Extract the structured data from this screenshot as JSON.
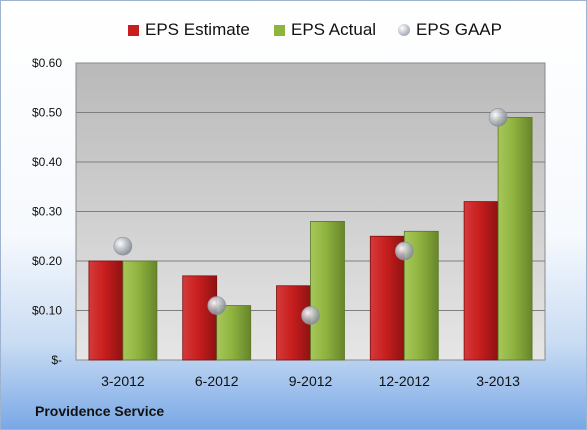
{
  "chart_data": {
    "type": "bar",
    "categories": [
      "3-2012",
      "6-2012",
      "9-2012",
      "12-2012",
      "3-2013"
    ],
    "series": [
      {
        "name": "EPS Estimate",
        "kind": "bar",
        "color": "#c81e1e",
        "values": [
          0.2,
          0.17,
          0.15,
          0.25,
          0.32
        ]
      },
      {
        "name": "EPS Actual",
        "kind": "bar",
        "color": "#8fb33f",
        "values": [
          0.2,
          0.11,
          0.28,
          0.26,
          0.49
        ]
      },
      {
        "name": "EPS GAAP",
        "kind": "marker",
        "color": "#a9aeb6",
        "values": [
          0.23,
          0.11,
          0.09,
          0.22,
          0.49
        ]
      }
    ],
    "yticks": [
      "$-",
      "$0.10",
      "$0.20",
      "$0.30",
      "$0.40",
      "$0.50",
      "$0.60"
    ],
    "ylim": [
      0,
      0.6
    ],
    "grid": true,
    "legend_position": "top"
  },
  "footer": {
    "company": "Providence Service"
  }
}
